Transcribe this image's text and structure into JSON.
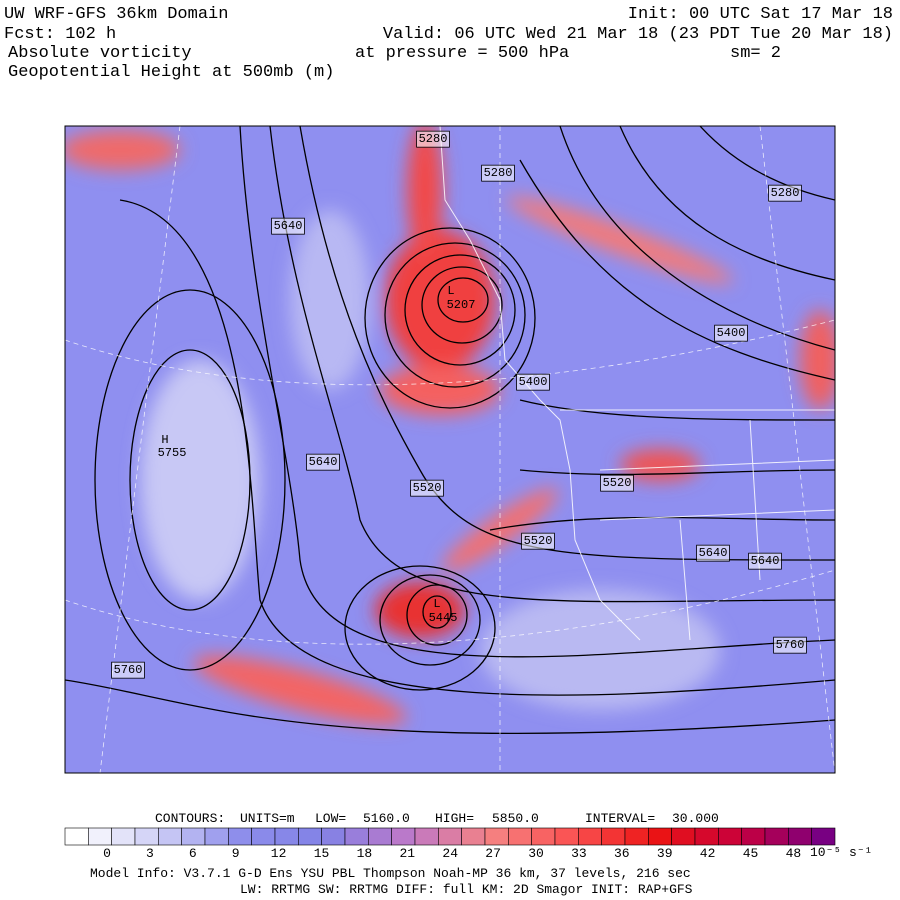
{
  "header": {
    "title": "UW WRF-GFS 36km Domain",
    "init": "Init: 00 UTC Sat 17 Mar 18",
    "fcst": "Fcst:  102 h",
    "valid": "Valid: 06 UTC Wed 21 Mar 18 (23 PDT Tue 20 Mar 18)",
    "field1": "Absolute vorticity",
    "pressure": "at pressure =  500 hPa",
    "smoothing": "sm= 2",
    "field2": "Geopotential Height at 500mb (m)"
  },
  "map": {
    "labels": [
      "5280",
      "5280",
      "5280",
      "5640",
      "L",
      "5207",
      "5400",
      "5400",
      "H",
      "5755",
      "5640",
      "5520",
      "5520",
      "5520",
      "5640",
      "5640",
      "L",
      "5445",
      "5760",
      "5760"
    ]
  },
  "colorbar": {
    "ticks": [
      "0",
      "3",
      "6",
      "9",
      "12",
      "15",
      "18",
      "21",
      "24",
      "27",
      "30",
      "33",
      "36",
      "39",
      "42",
      "45",
      "48"
    ],
    "units": "10⁻⁵ s⁻¹"
  },
  "footer": {
    "contours": [
      "CONTOURS:",
      "UNITS=m",
      "LOW=",
      "5160.0",
      "HIGH=",
      "5850.0",
      "INTERVAL=",
      "30.000"
    ],
    "model_info": "Model Info: V3.7.1    G-D Ens YSU PBL   Thompson     Noah-MP   36 km,    37 levels,   216 sec",
    "physics": "LW: RRTMG  SW: RRTMG    DIFF: full    KM: 2D Smagor  INIT: RAP+GFS"
  }
}
